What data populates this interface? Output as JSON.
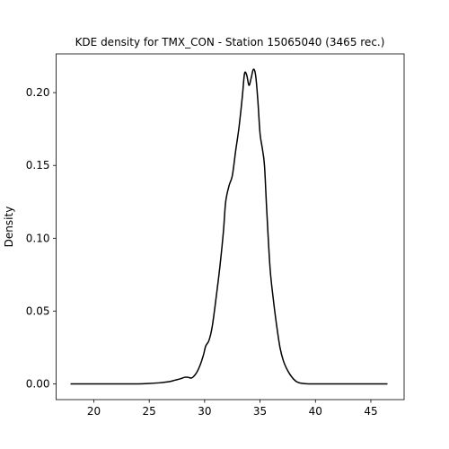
{
  "chart_data": {
    "type": "line",
    "title": "KDE density for TMX_CON - Station 15065040 (3465 rec.)",
    "xlabel": "",
    "ylabel": "Density",
    "xlim": [
      16.6,
      48.0
    ],
    "ylim": [
      -0.0108,
      0.2266
    ],
    "xticks": [
      20,
      25,
      30,
      35,
      40,
      45
    ],
    "xtick_labels": [
      "20",
      "25",
      "30",
      "35",
      "40",
      "45"
    ],
    "yticks": [
      0.0,
      0.05,
      0.1,
      0.15,
      0.2
    ],
    "ytick_labels": [
      "0.00",
      "0.05",
      "0.10",
      "0.15",
      "0.20"
    ],
    "grid": false,
    "legend": "none",
    "series": [
      {
        "color": "#000000",
        "x": [
          17.9,
          20.0,
          22.0,
          24.0,
          25.0,
          26.0,
          26.8,
          27.3,
          27.8,
          28.2,
          28.5,
          28.8,
          29.0,
          29.3,
          29.6,
          29.9,
          30.1,
          30.4,
          30.7,
          31.1,
          31.4,
          31.7,
          31.9,
          32.2,
          32.5,
          32.8,
          33.1,
          33.4,
          33.6,
          33.8,
          34.0,
          34.2,
          34.4,
          34.6,
          34.8,
          35.0,
          35.2,
          35.4,
          35.6,
          35.9,
          36.2,
          36.5,
          36.8,
          37.1,
          37.4,
          37.7,
          38.0,
          38.3,
          38.6,
          39.0,
          39.4,
          39.8,
          40.2,
          40.8,
          42.0,
          44.0,
          46.5
        ],
        "y": [
          0.0,
          0.0,
          0.0,
          0.0,
          0.0003,
          0.0008,
          0.0015,
          0.0025,
          0.0035,
          0.0045,
          0.0045,
          0.004,
          0.005,
          0.008,
          0.013,
          0.02,
          0.026,
          0.03,
          0.04,
          0.063,
          0.082,
          0.105,
          0.125,
          0.136,
          0.143,
          0.16,
          0.176,
          0.197,
          0.213,
          0.212,
          0.205,
          0.21,
          0.216,
          0.212,
          0.195,
          0.172,
          0.162,
          0.15,
          0.12,
          0.08,
          0.058,
          0.04,
          0.025,
          0.016,
          0.0105,
          0.0065,
          0.0035,
          0.0015,
          0.0006,
          0.0002,
          0.0,
          0.0,
          0.0,
          0.0,
          0.0,
          0.0,
          0.0
        ]
      }
    ]
  }
}
